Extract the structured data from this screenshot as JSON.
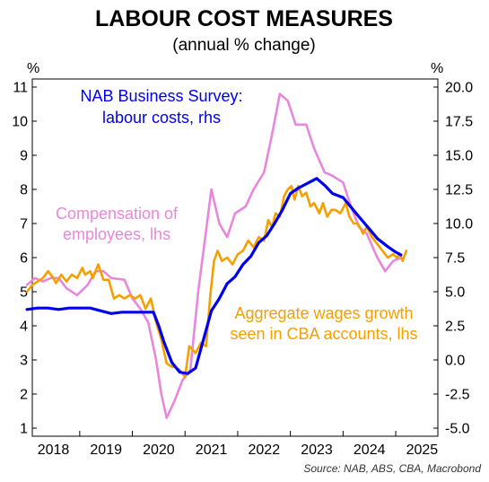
{
  "chart_data": {
    "type": "line",
    "title": "LABOUR COST MEASURES",
    "subtitle": "(annual % change)",
    "y_left_unit": "%",
    "y_right_unit": "%",
    "y_left": {
      "min": 1,
      "max": 11,
      "ticks": [
        "1",
        "2",
        "3",
        "4",
        "5",
        "6",
        "7",
        "8",
        "9",
        "10",
        "11"
      ]
    },
    "y_right": {
      "min": -5,
      "max": 20,
      "ticks": [
        "-5.0",
        "-2.5",
        "0.0",
        "2.5",
        "5.0",
        "7.5",
        "10.0",
        "12.5",
        "15.0",
        "17.5",
        "20.0"
      ]
    },
    "x_ticks": [
      "2018",
      "2019",
      "2020",
      "2021",
      "2022",
      "2023",
      "2024",
      "2025"
    ],
    "grid": false,
    "colors": {
      "nab": "#0000ee",
      "compensation": "#e887dc",
      "wages": "#f5a000"
    },
    "annotations": {
      "nab": [
        "NAB Business Survey:",
        "labour costs, rhs"
      ],
      "compensation": [
        "Compensation of",
        "employees, lhs"
      ],
      "wages": [
        "Aggregate wages growth",
        "seen in CBA accounts, lhs"
      ]
    },
    "source": "Source: NAB, ABS, CBA, Macrobond",
    "series": [
      {
        "name": "NAB Business Survey: labour costs, rhs",
        "axis": "right",
        "color": "#0000ee",
        "points": [
          [
            2017.5,
            3.7
          ],
          [
            2017.7,
            3.8
          ],
          [
            2017.9,
            3.8
          ],
          [
            2018.1,
            3.7
          ],
          [
            2018.3,
            3.8
          ],
          [
            2018.5,
            3.8
          ],
          [
            2018.7,
            3.8
          ],
          [
            2018.9,
            3.6
          ],
          [
            2019.1,
            3.4
          ],
          [
            2019.3,
            3.5
          ],
          [
            2019.5,
            3.5
          ],
          [
            2019.7,
            3.5
          ],
          [
            2019.9,
            3.5
          ],
          [
            2020.0,
            2.5
          ],
          [
            2020.1,
            1.3
          ],
          [
            2020.25,
            -0.2
          ],
          [
            2020.4,
            -0.9
          ],
          [
            2020.55,
            -1.0
          ],
          [
            2020.7,
            -0.6
          ],
          [
            2020.85,
            1.5
          ],
          [
            2021.0,
            3.6
          ],
          [
            2021.15,
            4.5
          ],
          [
            2021.3,
            5.6
          ],
          [
            2021.45,
            6.1
          ],
          [
            2021.6,
            7.0
          ],
          [
            2021.75,
            7.6
          ],
          [
            2021.9,
            8.6
          ],
          [
            2022.05,
            9.1
          ],
          [
            2022.2,
            10.0
          ],
          [
            2022.35,
            11.0
          ],
          [
            2022.5,
            12.2
          ],
          [
            2022.65,
            12.6
          ],
          [
            2022.85,
            13.0
          ],
          [
            2023.0,
            13.3
          ],
          [
            2023.15,
            12.8
          ],
          [
            2023.3,
            12.2
          ],
          [
            2023.5,
            11.9
          ],
          [
            2023.65,
            11.2
          ],
          [
            2023.8,
            10.5
          ],
          [
            2024.0,
            9.6
          ],
          [
            2024.15,
            8.9
          ],
          [
            2024.35,
            8.3
          ],
          [
            2024.5,
            7.9
          ],
          [
            2024.6,
            7.7
          ]
        ]
      },
      {
        "name": "Compensation of employees, lhs",
        "axis": "left",
        "color": "#e887dc",
        "points": [
          [
            2017.5,
            5.2
          ],
          [
            2017.65,
            5.4
          ],
          [
            2017.8,
            5.3
          ],
          [
            2017.95,
            5.4
          ],
          [
            2018.1,
            5.4
          ],
          [
            2018.25,
            5.1
          ],
          [
            2018.45,
            4.9
          ],
          [
            2018.65,
            5.2
          ],
          [
            2018.8,
            5.6
          ],
          [
            2018.95,
            5.6
          ],
          [
            2019.1,
            5.4
          ],
          [
            2019.35,
            5.35
          ],
          [
            2019.5,
            4.8
          ],
          [
            2019.65,
            4.5
          ],
          [
            2019.8,
            4.1
          ],
          [
            2019.95,
            3.0
          ],
          [
            2020.05,
            2.0
          ],
          [
            2020.15,
            1.3
          ],
          [
            2020.3,
            1.8
          ],
          [
            2020.45,
            2.4
          ],
          [
            2020.6,
            2.7
          ],
          [
            2020.75,
            5.0
          ],
          [
            2020.9,
            6.8
          ],
          [
            2021.0,
            8.0
          ],
          [
            2021.15,
            7.0
          ],
          [
            2021.3,
            6.6
          ],
          [
            2021.45,
            7.3
          ],
          [
            2021.65,
            7.5
          ],
          [
            2021.8,
            8.0
          ],
          [
            2022.0,
            8.5
          ],
          [
            2022.15,
            9.6
          ],
          [
            2022.3,
            10.8
          ],
          [
            2022.45,
            10.6
          ],
          [
            2022.6,
            9.9
          ],
          [
            2022.8,
            9.9
          ],
          [
            2022.95,
            9.2
          ],
          [
            2023.15,
            8.5
          ],
          [
            2023.3,
            8.4
          ],
          [
            2023.5,
            8.2
          ],
          [
            2023.65,
            7.5
          ],
          [
            2023.8,
            6.9
          ],
          [
            2023.95,
            6.7
          ],
          [
            2024.15,
            6.0
          ],
          [
            2024.3,
            5.6
          ],
          [
            2024.45,
            5.9
          ],
          [
            2024.6,
            6.0
          ]
        ]
      },
      {
        "name": "Aggregate wages growth seen in CBA accounts, lhs",
        "axis": "left",
        "color": "#f5a000",
        "points": [
          [
            2017.5,
            5.0
          ],
          [
            2017.6,
            5.2
          ],
          [
            2017.7,
            5.3
          ],
          [
            2017.8,
            5.4
          ],
          [
            2017.9,
            5.6
          ],
          [
            2018.0,
            5.4
          ],
          [
            2018.05,
            5.25
          ],
          [
            2018.15,
            5.5
          ],
          [
            2018.25,
            5.3
          ],
          [
            2018.35,
            5.5
          ],
          [
            2018.45,
            5.4
          ],
          [
            2018.55,
            5.7
          ],
          [
            2018.6,
            5.5
          ],
          [
            2018.7,
            5.6
          ],
          [
            2018.75,
            5.4
          ],
          [
            2018.85,
            5.8
          ],
          [
            2018.95,
            5.35
          ],
          [
            2019.05,
            5.35
          ],
          [
            2019.15,
            4.8
          ],
          [
            2019.25,
            4.9
          ],
          [
            2019.35,
            4.8
          ],
          [
            2019.45,
            4.9
          ],
          [
            2019.55,
            4.8
          ],
          [
            2019.65,
            4.9
          ],
          [
            2019.75,
            4.5
          ],
          [
            2019.85,
            4.8
          ],
          [
            2019.95,
            4.1
          ],
          [
            2020.05,
            3.6
          ],
          [
            2020.15,
            2.9
          ],
          [
            2020.25,
            2.8
          ],
          [
            2020.3,
            2.8
          ],
          [
            2020.4,
            2.7
          ],
          [
            2020.5,
            2.5
          ],
          [
            2020.58,
            3.4
          ],
          [
            2020.7,
            3.2
          ],
          [
            2020.8,
            3.5
          ],
          [
            2020.9,
            3.4
          ],
          [
            2020.98,
            4.9
          ],
          [
            2021.05,
            5.9
          ],
          [
            2021.12,
            6.2
          ],
          [
            2021.2,
            5.9
          ],
          [
            2021.3,
            6.0
          ],
          [
            2021.4,
            5.8
          ],
          [
            2021.5,
            6.1
          ],
          [
            2021.6,
            6.2
          ],
          [
            2021.7,
            6.5
          ],
          [
            2021.8,
            6.3
          ],
          [
            2021.9,
            6.6
          ],
          [
            2022.0,
            6.5
          ],
          [
            2022.08,
            7.1
          ],
          [
            2022.15,
            6.9
          ],
          [
            2022.22,
            7.3
          ],
          [
            2022.3,
            7.2
          ],
          [
            2022.38,
            7.8
          ],
          [
            2022.45,
            8.0
          ],
          [
            2022.52,
            8.1
          ],
          [
            2022.58,
            7.7
          ],
          [
            2022.65,
            8.1
          ],
          [
            2022.72,
            7.8
          ],
          [
            2022.8,
            7.9
          ],
          [
            2022.88,
            7.5
          ],
          [
            2022.95,
            7.6
          ],
          [
            2023.05,
            7.3
          ],
          [
            2023.12,
            7.6
          ],
          [
            2023.2,
            7.2
          ],
          [
            2023.28,
            7.4
          ],
          [
            2023.35,
            7.4
          ],
          [
            2023.45,
            7.3
          ],
          [
            2023.55,
            7.6
          ],
          [
            2023.62,
            7.2
          ],
          [
            2023.7,
            7.0
          ],
          [
            2023.78,
            7.0
          ],
          [
            2023.88,
            6.7
          ],
          [
            2023.95,
            6.9
          ],
          [
            2024.05,
            6.6
          ],
          [
            2024.15,
            6.4
          ],
          [
            2024.25,
            6.2
          ],
          [
            2024.35,
            6.0
          ],
          [
            2024.45,
            6.1
          ],
          [
            2024.52,
            6.0
          ],
          [
            2024.58,
            6.1
          ],
          [
            2024.63,
            5.9
          ],
          [
            2024.7,
            6.2
          ]
        ]
      }
    ]
  }
}
